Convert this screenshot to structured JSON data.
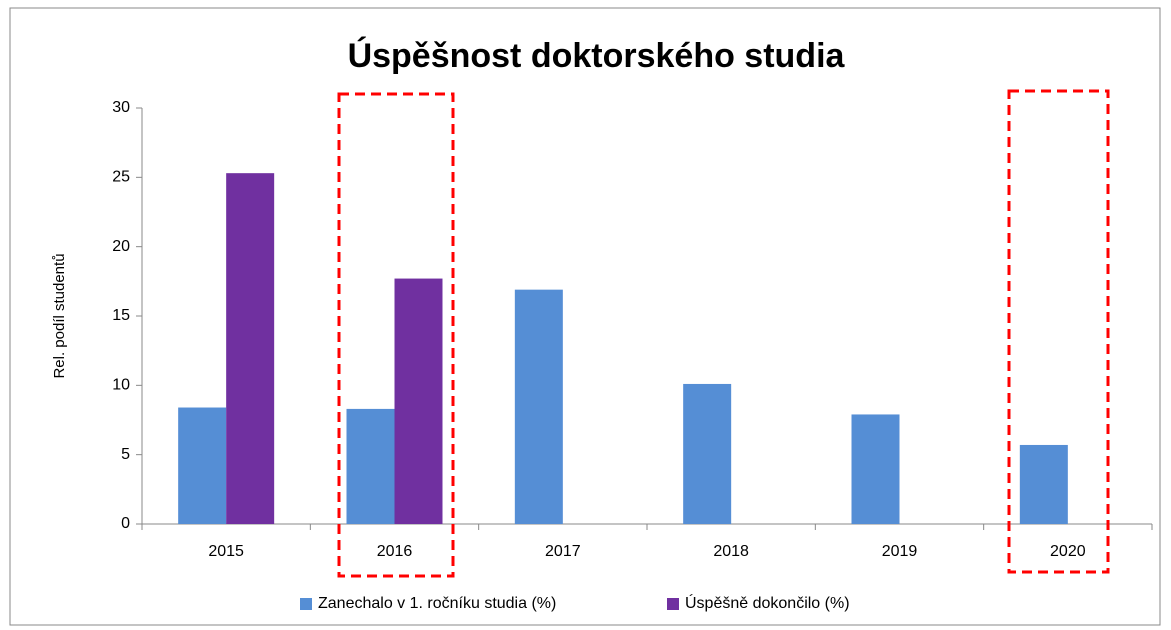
{
  "chart_data": {
    "type": "bar",
    "title": "Úspěšnost doktorského studia",
    "y_label": "Rel. podíl studentů",
    "categories": [
      "2015",
      "2016",
      "2017",
      "2018",
      "2019",
      "2020"
    ],
    "series": [
      {
        "name": "Zanechalo v 1. ročníku studia (%)",
        "color": "#558ed5",
        "values": [
          8.4,
          8.3,
          16.9,
          10.1,
          7.9,
          5.7
        ]
      },
      {
        "name": "Úspěšně dokončilo (%)",
        "color": "#7030a0",
        "values": [
          25.3,
          17.7,
          null,
          null,
          null,
          null
        ]
      }
    ],
    "ylim": [
      0,
      30
    ],
    "yticks": [
      0,
      5,
      10,
      15,
      20,
      25,
      30
    ],
    "grid": false,
    "legend": "bottom"
  }
}
